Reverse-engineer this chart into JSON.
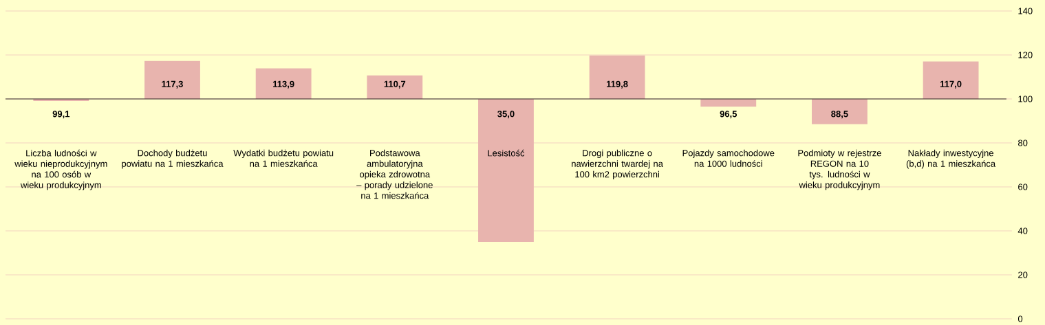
{
  "chart_data": {
    "type": "bar",
    "categories": [
      "Liczba ludności w wieku nieprodukcyjnym na 100 osób w wieku produkcyjnym",
      "Dochody budżetu powiatu na 1 mieszkańca",
      "Wydatki budżetu powiatu na 1 mieszkańca",
      "Podstawowa ambulatoryjna opieka zdrowotna – porady udzielone na 1 mieszkańca",
      "Lesistość",
      "Drogi publiczne o nawierzchni twardej na 100 km2 powierzchni",
      "Pojazdy samochodowe na 1000 ludności",
      "Podmioty w rejestrze REGON na 10 tys. ludności w wieku produkcyjnym",
      "Nakłady inwestycyjne (b,d) na 1 mieszkańca"
    ],
    "base": [
      100,
      100,
      100,
      100,
      100,
      100,
      100,
      100,
      100
    ],
    "values": [
      -0.9,
      17.3,
      13.9,
      10.7,
      -65.0,
      19.8,
      -3.5,
      -11.5,
      17.0
    ],
    "value_labels": [
      "99,1",
      "117,3",
      "113,9",
      "110,7",
      "35,0",
      "119,8",
      "96,5",
      "88,5",
      "117,0"
    ],
    "color": "#e8b4ae",
    "ylim": [
      0,
      140
    ],
    "yticks": [
      0,
      20,
      40,
      60,
      80,
      100,
      120,
      140
    ],
    "ref_lines": [
      {
        "axis": "y",
        "value": 100,
        "color": "#000000"
      }
    ],
    "grid": "y"
  }
}
